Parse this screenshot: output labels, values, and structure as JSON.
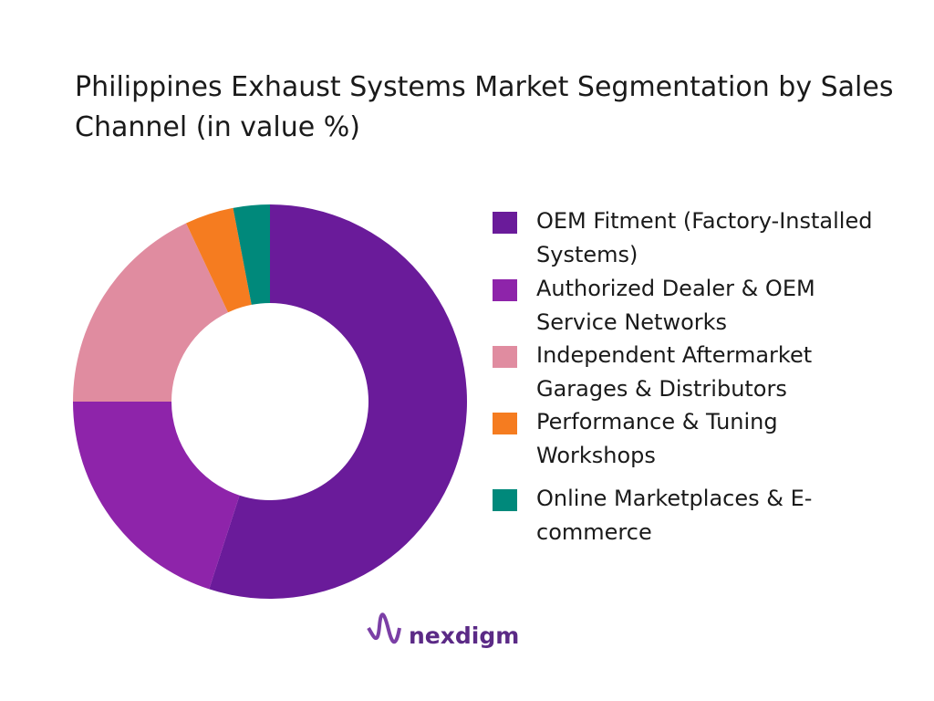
{
  "chart_data": {
    "type": "donut",
    "title": "Philippines Exhaust Systems Market Segmentation by Sales Channel (in value %)",
    "categories": [
      "OEM Fitment (Factory-Installed Systems)",
      "Authorized Dealer & OEM Service Networks",
      "Independent Aftermarket Garages & Distributors",
      "Performance & Tuning Workshops",
      "Online Marketplaces & E-commerce"
    ],
    "values": [
      55,
      20,
      18,
      4,
      3
    ],
    "colors": [
      "#6a1b9a",
      "#8e24aa",
      "#e08ca0",
      "#f57c20",
      "#00897b"
    ]
  },
  "brand": "nexdigm"
}
